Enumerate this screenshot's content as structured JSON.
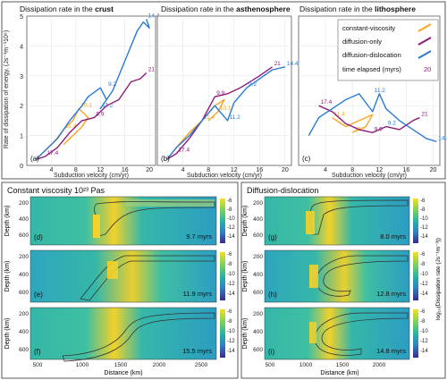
{
  "top_row": {
    "y_axis_label": "Rate of dissipation of energy, (Js⁻¹m⁻¹10⁶)",
    "y_ticks": [
      "0",
      "1",
      "2",
      "3",
      "4",
      "5"
    ],
    "x_tick_labels": [
      "4",
      "8",
      "12",
      "16",
      "20"
    ],
    "panels": [
      {
        "title_prefix": "Dissipation rate in the ",
        "title_bold": "crust",
        "letter": "(a)",
        "x_label": "Subduction velocity (cm/yr)"
      },
      {
        "title_prefix": "Dissipation rate in the ",
        "title_bold": "asthenosphere",
        "letter": "(b)",
        "x_label": "Subduction velocity (cm/yr)"
      },
      {
        "title_prefix": "Dissipation rate in the ",
        "title_bold": "lithosphere",
        "letter": "(c)",
        "x_label": "Subduction velocity (cm/yr)"
      }
    ]
  },
  "legend": {
    "items": [
      {
        "label": "constant-viscosity",
        "color": "#f5a623"
      },
      {
        "label": "diffusion-only",
        "color": "#8e1a7a"
      },
      {
        "label": "diffusion-dislocation",
        "color": "#2a7ad4"
      }
    ],
    "time_label": "time elapsed (myrs)",
    "time_example": "20"
  },
  "bottom": {
    "left_title": "Constant viscosity 10²³ Pas",
    "right_title": "Diffusion-dislocation",
    "depth_label": "Depth (km)",
    "distance_label": "Distance (km)",
    "depth_ticks": [
      "200",
      "400",
      "600"
    ],
    "distance_ticks": [
      "500",
      "1000",
      "1500",
      "2000",
      "2500"
    ],
    "colorbar_ticks": [
      "-6",
      "-8",
      "-10",
      "-12",
      "-14"
    ],
    "colorbar_label": "log₁₀(Dissipation rate (Js⁻¹m⁻³))",
    "panels_left": [
      {
        "letter": "(d)",
        "time": "9.7 myrs"
      },
      {
        "letter": "(e)",
        "time": "11.9 myrs"
      },
      {
        "letter": "(f)",
        "time": "15.5 myrs"
      }
    ],
    "panels_right": [
      {
        "letter": "(g)",
        "time": "8.0 myrs"
      },
      {
        "letter": "(h)",
        "time": "12.8 myrs"
      },
      {
        "letter": "(i)",
        "time": "14.8 myrs"
      }
    ]
  },
  "chart_data": [
    {
      "type": "line",
      "title": "Dissipation rate in the crust",
      "xlabel": "Subduction velocity (cm/yr)",
      "ylabel": "Rate of dissipation of energy, (Js⁻¹m⁻¹10⁶)",
      "xlim": [
        0,
        21
      ],
      "ylim": [
        0,
        5
      ],
      "series": [
        {
          "name": "constant-viscosity",
          "color": "#f5a623",
          "points": [
            [
              1.5,
              0.2
            ],
            [
              3,
              0.5
            ],
            [
              4.5,
              0.8
            ],
            [
              6,
              1.2
            ],
            [
              7.5,
              1.5
            ],
            [
              8.5,
              1.9
            ],
            [
              10,
              1.6
            ],
            [
              9,
              1.3
            ],
            [
              7,
              0.9
            ],
            [
              6,
              0.7
            ]
          ],
          "labels": [
            {
              "text": "10.1",
              "at": [
                8.5,
                1.9
              ]
            },
            {
              "text": "11.4",
              "at": [
                6,
                1.2
              ]
            }
          ]
        },
        {
          "name": "diffusion-only",
          "color": "#8e1a7a",
          "points": [
            [
              1.5,
              0.2
            ],
            [
              3,
              0.3
            ],
            [
              5,
              0.6
            ],
            [
              7,
              1.1
            ],
            [
              9,
              1.5
            ],
            [
              11,
              1.6
            ],
            [
              13,
              2.0
            ],
            [
              15,
              2.2
            ],
            [
              17,
              2.8
            ],
            [
              18.5,
              2.9
            ],
            [
              19.5,
              3.1
            ]
          ],
          "labels": [
            {
              "text": "17.4",
              "at": [
                3,
                0.3
              ]
            },
            {
              "text": "9.9",
              "at": [
                11,
                1.6
              ]
            },
            {
              "text": "21",
              "at": [
                19.5,
                3.1
              ]
            }
          ]
        },
        {
          "name": "diffusion-dislocation",
          "color": "#2a7ad4",
          "points": [
            [
              1.5,
              0.2
            ],
            [
              3,
              0.5
            ],
            [
              5,
              0.9
            ],
            [
              7,
              1.5
            ],
            [
              9,
              2.0
            ],
            [
              10,
              2.3
            ],
            [
              12,
              2.6
            ],
            [
              13,
              2.2
            ],
            [
              12,
              1.9
            ],
            [
              14,
              2.5
            ],
            [
              16,
              3.5
            ],
            [
              18,
              4.5
            ],
            [
              19,
              4.8
            ],
            [
              20,
              4.6
            ],
            [
              19.5,
              4.9
            ]
          ],
          "labels": [
            {
              "text": "11.2",
              "at": [
                12,
                1.9
              ]
            },
            {
              "text": "9.2",
              "at": [
                13,
                2.6
              ]
            },
            {
              "text": "14.4",
              "at": [
                19.5,
                4.9
              ]
            }
          ]
        }
      ]
    },
    {
      "type": "line",
      "title": "Dissipation rate in the asthenosphere",
      "xlabel": "Subduction velocity (cm/yr)",
      "xlim": [
        0,
        21
      ],
      "ylim": [
        0,
        5
      ],
      "series": [
        {
          "name": "constant-viscosity",
          "color": "#f5a623",
          "points": [
            [
              1.5,
              0.2
            ],
            [
              3,
              0.6
            ],
            [
              5,
              1.1
            ],
            [
              7,
              1.5
            ],
            [
              9,
              2.0
            ],
            [
              10.5,
              2.2
            ],
            [
              9.5,
              1.8
            ],
            [
              8,
              1.5
            ]
          ],
          "labels": [
            {
              "text": "10.1",
              "at": [
                9.5,
                1.8
              ]
            },
            {
              "text": "11.4",
              "at": [
                7,
                1.5
              ]
            }
          ]
        },
        {
          "name": "diffusion-only",
          "color": "#8e1a7a",
          "points": [
            [
              1.5,
              0.2
            ],
            [
              3,
              0.4
            ],
            [
              5,
              0.9
            ],
            [
              7,
              1.5
            ],
            [
              9,
              2.3
            ],
            [
              11,
              2.4
            ],
            [
              13,
              2.6
            ],
            [
              16,
              3.0
            ],
            [
              18,
              3.3
            ]
          ],
          "labels": [
            {
              "text": "17.4",
              "at": [
                3,
                0.4
              ]
            },
            {
              "text": "9.9",
              "at": [
                9,
                2.3
              ]
            },
            {
              "text": "21",
              "at": [
                18,
                3.3
              ]
            }
          ]
        },
        {
          "name": "diffusion-dislocation",
          "color": "#2a7ad4",
          "points": [
            [
              1.5,
              0.2
            ],
            [
              3,
              0.6
            ],
            [
              5,
              1.0
            ],
            [
              7,
              1.5
            ],
            [
              9,
              2.0
            ],
            [
              11,
              1.5
            ],
            [
              12,
              2.1
            ],
            [
              14,
              2.6
            ],
            [
              16,
              2.9
            ],
            [
              18,
              3.2
            ],
            [
              20,
              3.3
            ]
          ],
          "labels": [
            {
              "text": "11.2",
              "at": [
                11,
                1.5
              ]
            },
            {
              "text": "9.2",
              "at": [
                14,
                2.6
              ]
            },
            {
              "text": "14.4",
              "at": [
                20,
                3.3
              ]
            }
          ]
        }
      ]
    },
    {
      "type": "line",
      "title": "Dissipation rate in the lithosphere",
      "xlabel": "Subduction velocity (cm/yr)",
      "xlim": [
        0,
        21
      ],
      "ylim": [
        0,
        5
      ],
      "series": [
        {
          "name": "constant-viscosity",
          "color": "#f5a623",
          "points": [
            [
              5,
              1.6
            ],
            [
              7,
              1.3
            ],
            [
              9,
              1.5
            ],
            [
              11,
              1.7
            ],
            [
              10,
              1.3
            ],
            [
              8,
              1.1
            ]
          ],
          "labels": [
            {
              "text": "11.4",
              "at": [
                5,
                1.6
              ]
            },
            {
              "text": "10.1",
              "at": [
                8,
                1.1
              ]
            }
          ]
        },
        {
          "name": "diffusion-only",
          "color": "#8e1a7a",
          "points": [
            [
              3,
              2.0
            ],
            [
              5,
              1.8
            ],
            [
              7,
              1.4
            ],
            [
              9,
              1.2
            ],
            [
              11,
              1.1
            ],
            [
              13,
              1.3
            ],
            [
              15,
              1.2
            ],
            [
              17,
              1.5
            ],
            [
              18,
              1.6
            ]
          ],
          "labels": [
            {
              "text": "17.4",
              "at": [
                3,
                2.0
              ]
            },
            {
              "text": "9.9",
              "at": [
                11,
                1.1
              ]
            },
            {
              "text": "21",
              "at": [
                18,
                1.6
              ]
            }
          ]
        },
        {
          "name": "diffusion-dislocation",
          "color": "#2a7ad4",
          "points": [
            [
              1.5,
              1.0
            ],
            [
              3,
              1.6
            ],
            [
              5,
              1.9
            ],
            [
              7,
              2.2
            ],
            [
              9,
              2.4
            ],
            [
              11,
              1.8
            ],
            [
              12,
              2.4
            ],
            [
              13,
              1.9
            ],
            [
              15,
              1.5
            ],
            [
              17,
              1.2
            ],
            [
              19,
              0.9
            ],
            [
              20.5,
              0.8
            ]
          ],
          "labels": [
            {
              "text": "11.2",
              "at": [
                11,
                2.4
              ]
            },
            {
              "text": "9.2",
              "at": [
                13,
                1.3
              ]
            },
            {
              "text": "14.4",
              "at": [
                20.5,
                0.8
              ]
            }
          ]
        }
      ]
    }
  ]
}
